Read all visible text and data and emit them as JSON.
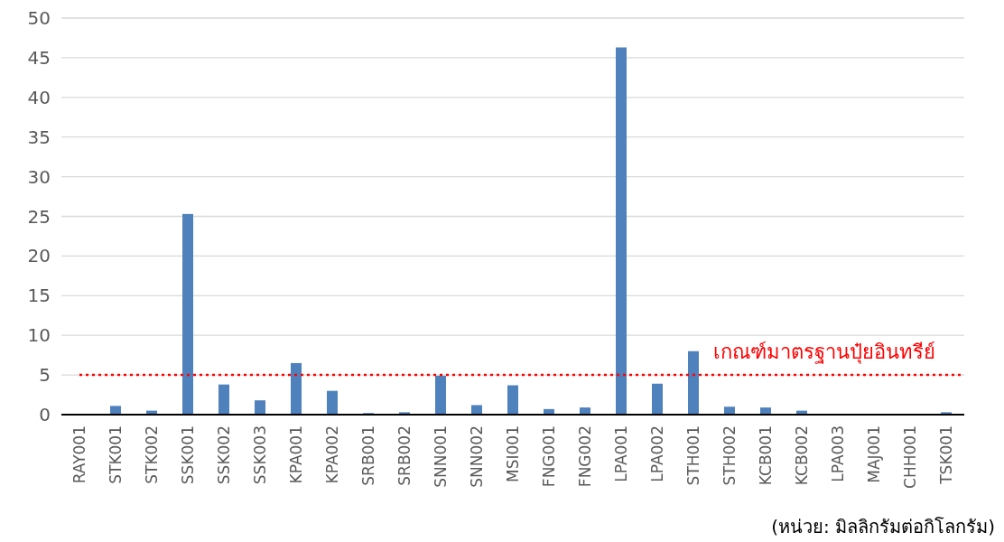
{
  "chart_data": {
    "type": "bar",
    "categories": [
      "RAY001",
      "STK001",
      "STK002",
      "SSK001",
      "SSK002",
      "SSK003",
      "KPA001",
      "KPA002",
      "SRB001",
      "SRB002",
      "SNN001",
      "SNN002",
      "MSI001",
      "FNG001",
      "FNG002",
      "LPA001",
      "LPA002",
      "STH001",
      "STH002",
      "KCB001",
      "KCB002",
      "LPA003",
      "MAJ001",
      "CHH001",
      "TSK001"
    ],
    "values": [
      0,
      1.1,
      0.5,
      25.3,
      3.8,
      1.8,
      6.5,
      3.0,
      0.2,
      0.3,
      4.9,
      1.2,
      3.7,
      0.7,
      0.9,
      46.3,
      3.9,
      8.0,
      1.0,
      0.9,
      0.5,
      0,
      0,
      0,
      0.3
    ],
    "color": "#4f81bd",
    "ylim": [
      0,
      50
    ],
    "yticks": [
      0,
      5,
      10,
      15,
      20,
      25,
      30,
      35,
      40,
      45,
      50
    ],
    "grid": "y",
    "ref_lines": [
      {
        "axis": "y",
        "value": 5,
        "label": "เกณฑ์มาตรฐานปุ๋ยอินทรีย์",
        "color": "#ff0000",
        "line_style": "dotted"
      }
    ],
    "annotations": [
      "(หน่วย: มิลลิกรัมต่อกิโลกรัม)"
    ]
  }
}
